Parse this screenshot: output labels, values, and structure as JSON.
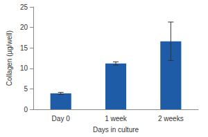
{
  "chart_data": {
    "type": "bar",
    "categories": [
      "Day 0",
      "1 week",
      "2 weeks"
    ],
    "values": [
      3.9,
      11.2,
      16.6
    ],
    "errors": [
      0.25,
      0.4,
      4.7
    ],
    "color": "#1f5ca8",
    "x_label": "Days in culture",
    "y_label": "Collagen (µg/well)",
    "ylim": [
      0,
      25
    ],
    "yticks": [
      0,
      5,
      10,
      15,
      20,
      25
    ],
    "grid": false
  }
}
